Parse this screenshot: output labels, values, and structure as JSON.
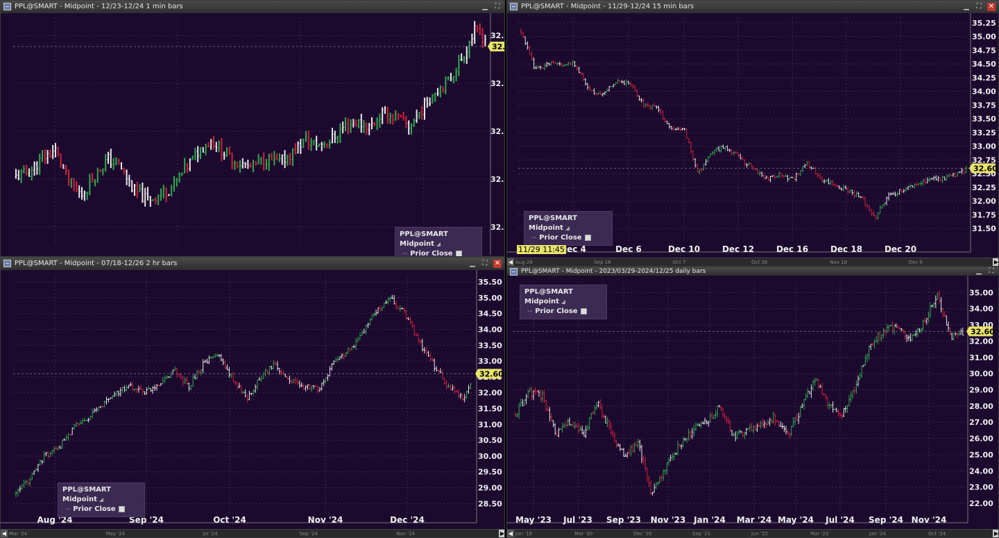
{
  "colors": {
    "bg": "#1c0a2e",
    "up": "#2fa84f",
    "down": "#d1203a",
    "flat": "#e8e8e8",
    "price_tag": "#e8e36a"
  },
  "windows": [
    {
      "id": "tl",
      "title": "PPL@SMART - Midpoint - 12/23-12/24 1 min bars",
      "legend": {
        "name": "PPL@SMART Midpoint",
        "prior": "Prior Close"
      },
      "time_badge": "",
      "scroll_labels": [],
      "chart_data": {
        "type": "ohlc",
        "y_labels": [
          "32.",
          "32.",
          "32.",
          "32.",
          "32."
        ],
        "price_tag": "32.",
        "x_labels": [],
        "ylim": [
          0,
          1
        ],
        "anchors": [
          0.3,
          0.32,
          0.38,
          0.42,
          0.28,
          0.22,
          0.3,
          0.38,
          0.34,
          0.24,
          0.2,
          0.22,
          0.26,
          0.34,
          0.42,
          0.46,
          0.4,
          0.36,
          0.34,
          0.38,
          0.36,
          0.4,
          0.46,
          0.44,
          0.46,
          0.52,
          0.54,
          0.52,
          0.58,
          0.56,
          0.52,
          0.6,
          0.68,
          0.72,
          0.82,
          0.94,
          0.9
        ],
        "noise": 0.05
      }
    },
    {
      "id": "tr",
      "title": "PPL@SMART - Midpoint - 11/29-12/24 15 min bars",
      "legend": {
        "name": "PPL@SMART Midpoint",
        "prior": "Prior Close"
      },
      "time_badge": "11/29 11:45",
      "scroll_labels": [
        "Aug 26",
        "Sep 16",
        "Oct 7",
        "Oct 28",
        "Nov 18",
        "Dec 9"
      ],
      "chart_data": {
        "type": "ohlc",
        "y_labels": [
          "35.25",
          "35.00",
          "34.75",
          "34.50",
          "34.25",
          "34.00",
          "33.75",
          "33.50",
          "33.25",
          "33.00",
          "32.75",
          "32.50",
          "32.25",
          "32.00",
          "31.75",
          "31.50"
        ],
        "price_tag": "32.60",
        "x_labels": [
          "Dec 4",
          "Dec 6",
          "Dec 10",
          "Dec 12",
          "Dec 16",
          "Dec 18",
          "Dec 20"
        ],
        "ylim": [
          31.25,
          35.35
        ],
        "anchors": [
          35.1,
          34.4,
          34.5,
          34.5,
          34.5,
          34.0,
          33.95,
          34.2,
          34.15,
          33.75,
          33.7,
          33.3,
          33.3,
          32.5,
          32.9,
          33.0,
          32.8,
          32.6,
          32.4,
          32.5,
          32.4,
          32.7,
          32.4,
          32.3,
          32.2,
          32.05,
          31.7,
          32.1,
          32.2,
          32.3,
          32.4,
          32.4,
          32.5,
          32.6
        ],
        "noise": 0.08
      }
    },
    {
      "id": "bl",
      "title": "PPL@SMART - Midpoint - 07/18-12/26 2 hr bars",
      "legend": {
        "name": "PPL@SMART Midpoint",
        "prior": "Prior Close"
      },
      "time_badge": "",
      "scroll_labels": [
        "Mar '24",
        "May '24",
        "Jul '24",
        "Sep '24",
        "Nov '24"
      ],
      "chart_data": {
        "type": "ohlc",
        "y_labels": [
          "35.50",
          "35.00",
          "34.50",
          "34.00",
          "33.50",
          "33.00",
          "32.50",
          "32.00",
          "31.50",
          "31.00",
          "30.50",
          "30.00",
          "29.50",
          "29.00",
          "28.50"
        ],
        "price_tag": "32.60",
        "x_labels": [
          "Aug '24",
          "Sep '24",
          "Oct '24",
          "Nov '24",
          "Dec '24"
        ],
        "ylim": [
          28.2,
          35.7
        ],
        "anchors": [
          28.8,
          29.3,
          30.0,
          30.3,
          30.9,
          31.2,
          31.6,
          32.0,
          32.2,
          32.0,
          32.3,
          32.7,
          32.2,
          32.9,
          33.2,
          32.5,
          31.8,
          32.5,
          32.9,
          32.4,
          32.2,
          32.1,
          32.9,
          33.3,
          33.8,
          34.6,
          35.0,
          34.5,
          33.6,
          32.9,
          32.2,
          31.8,
          32.6
        ],
        "noise": 0.18
      }
    },
    {
      "id": "br",
      "title": "PPL@SMART - Midpoint - 2023/03/29-2024/12/25 daily bars",
      "legend": {
        "name": "PPL@SMART Midpoint",
        "prior": "Prior Close"
      },
      "time_badge": "",
      "scroll_labels": [
        "Jun '19",
        "Mar '20",
        "Dec '20",
        "Sep '21",
        "Jun '22",
        "Mar '23",
        "Jan '24",
        "Oct '24"
      ],
      "chart_data": {
        "type": "ohlc",
        "y_labels": [
          "35.00",
          "34.00",
          "33.00",
          "32.00",
          "31.00",
          "30.00",
          "29.00",
          "28.00",
          "27.00",
          "26.00",
          "25.00",
          "24.00",
          "23.00",
          "22.00"
        ],
        "price_tag": "32.60",
        "x_labels": [
          "May '23",
          "Jul '23",
          "Sep '23",
          "Nov '23",
          "Jan '24",
          "Mar '24",
          "May '24",
          "Jul '24",
          "Sep '24",
          "Nov '24"
        ],
        "ylim": [
          21.4,
          35.7
        ],
        "anchors": [
          27.5,
          28.8,
          28.6,
          26.2,
          27.0,
          26.3,
          28.2,
          26.5,
          24.8,
          25.8,
          22.5,
          24.2,
          25.5,
          26.5,
          27.0,
          28.0,
          26.2,
          26.4,
          26.9,
          27.3,
          26.2,
          27.8,
          29.7,
          28.0,
          27.4,
          29.2,
          31.6,
          32.6,
          32.9,
          32.2,
          33.1,
          34.9,
          32.3,
          32.6
        ],
        "noise": 0.45
      }
    }
  ]
}
